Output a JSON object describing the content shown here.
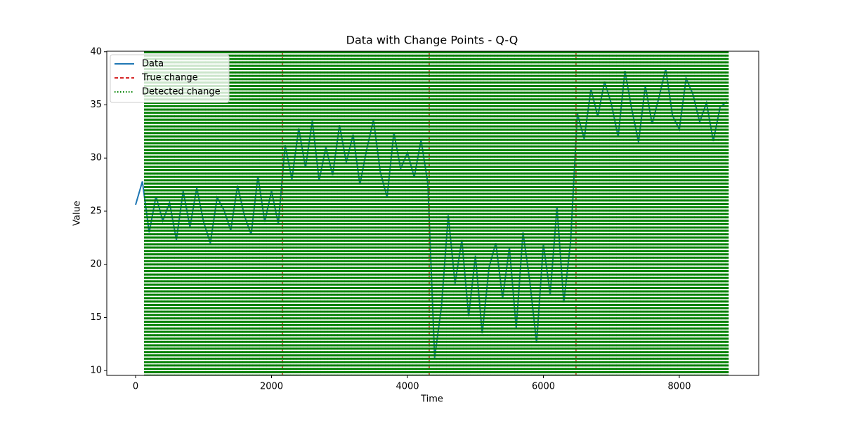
{
  "chart_data": {
    "type": "line",
    "title": "Data with Change Points - Q-Q",
    "x_label": "Time",
    "y_label": "Value",
    "x": [
      0,
      100,
      200,
      300,
      400,
      500,
      600,
      700,
      800,
      900,
      1000,
      1100,
      1200,
      1300,
      1400,
      1500,
      1600,
      1700,
      1800,
      1900,
      2000,
      2100,
      2200,
      2300,
      2400,
      2500,
      2600,
      2700,
      2800,
      2900,
      3000,
      3100,
      3200,
      3300,
      3400,
      3500,
      3600,
      3700,
      3800,
      3900,
      4000,
      4100,
      4200,
      4300,
      4400,
      4500,
      4600,
      4700,
      4800,
      4900,
      5000,
      5100,
      5200,
      5300,
      5400,
      5500,
      5600,
      5700,
      5800,
      5900,
      6000,
      6100,
      6200,
      6300,
      6400,
      6500,
      6600,
      6700,
      6800,
      6900,
      7000,
      7100,
      7200,
      7300,
      7400,
      7500,
      7600,
      7700,
      7800,
      7900,
      8000,
      8100,
      8200,
      8300,
      8400,
      8500,
      8600,
      8700
    ],
    "series": [
      {
        "name": "Data",
        "color": "#1f77b4",
        "values": [
          25.6,
          27.8,
          23.0,
          26.4,
          24.1,
          25.8,
          22.3,
          26.9,
          23.5,
          27.2,
          24.0,
          22.0,
          26.3,
          25.1,
          23.2,
          27.4,
          24.6,
          22.8,
          28.3,
          24.0,
          26.9,
          23.8,
          31.2,
          28.0,
          32.8,
          29.1,
          33.5,
          27.9,
          31.0,
          28.4,
          33.1,
          29.6,
          32.2,
          27.5,
          30.8,
          33.6,
          28.7,
          26.3,
          32.4,
          29.0,
          30.5,
          28.2,
          31.7,
          27.6,
          11.2,
          16.0,
          24.6,
          18.2,
          22.3,
          15.1,
          20.8,
          13.5,
          19.7,
          22.0,
          16.8,
          21.6,
          14.0,
          23.0,
          18.4,
          12.6,
          21.9,
          17.2,
          25.4,
          16.4,
          22.1,
          34.2,
          31.8,
          36.5,
          33.9,
          37.2,
          35.1,
          32.0,
          38.2,
          34.6,
          31.5,
          36.8,
          33.2,
          35.7,
          38.4,
          34.0,
          32.7,
          37.5,
          36.0,
          33.4,
          35.2,
          31.6,
          34.8,
          35.3
        ]
      }
    ],
    "true_change": {
      "name": "True change",
      "color": "#d62728",
      "values": [
        2160,
        4320,
        6480
      ]
    },
    "detected_change": {
      "name": "Detected change",
      "color": "#008000",
      "values": [
        150,
        200,
        250,
        300,
        350,
        400,
        450,
        500,
        550,
        600,
        650,
        700,
        750,
        800,
        850,
        900,
        950,
        1000,
        1050,
        1100,
        1150,
        1200,
        1250,
        1300,
        1350,
        1400,
        1450,
        1500,
        1550,
        1600,
        1650,
        1700,
        1750,
        1800,
        1850,
        1900,
        1950,
        2000,
        2050,
        2100,
        2150,
        2200,
        2250,
        2300,
        2350,
        2400,
        2450,
        2500,
        2550,
        2600,
        2650,
        2700,
        2750,
        2800,
        2850,
        2900,
        2950,
        3000,
        3050,
        3100,
        3150,
        3200,
        3250,
        3300,
        3350,
        3400,
        3450,
        3500,
        3550,
        3600,
        3650,
        3700,
        3750,
        3800,
        3850,
        3900,
        3950,
        4000,
        4050,
        4100,
        4150,
        4200,
        4250,
        4300,
        4350,
        4400,
        4450,
        4500,
        4550,
        4600,
        4650,
        4700,
        4750,
        4800,
        4850,
        4900,
        4950,
        5000,
        5050,
        5100,
        5150,
        5200,
        5250,
        5300,
        5350,
        5400,
        5450,
        5500,
        5550,
        5600,
        5650,
        5700,
        5750,
        5800,
        5850,
        5900,
        5950,
        6000,
        6050,
        6100,
        6150,
        6200,
        6250,
        6300,
        6350,
        6400,
        6450,
        6500,
        6550,
        6600,
        6650,
        6700,
        6750,
        6800,
        6850,
        6900,
        6950,
        7000,
        7050,
        7100,
        7150,
        7200,
        7250,
        7300,
        7350,
        7400,
        7450,
        7500,
        7550,
        7600,
        7650,
        7700,
        7750,
        7800,
        7850,
        7900,
        7950,
        8000,
        8050,
        8100,
        8150,
        8200,
        8250,
        8300,
        8350,
        8400,
        8450,
        8500,
        8550,
        8600,
        8650,
        8700
      ]
    },
    "xlim": [
      -424,
      9168
    ],
    "xticks": [
      0,
      2000,
      4000,
      6000,
      8000
    ],
    "ylim": [
      9.55,
      40.05
    ],
    "yticks": [
      10,
      15,
      20,
      25,
      30,
      35,
      40
    ],
    "grid": false,
    "legend": "upper left"
  }
}
